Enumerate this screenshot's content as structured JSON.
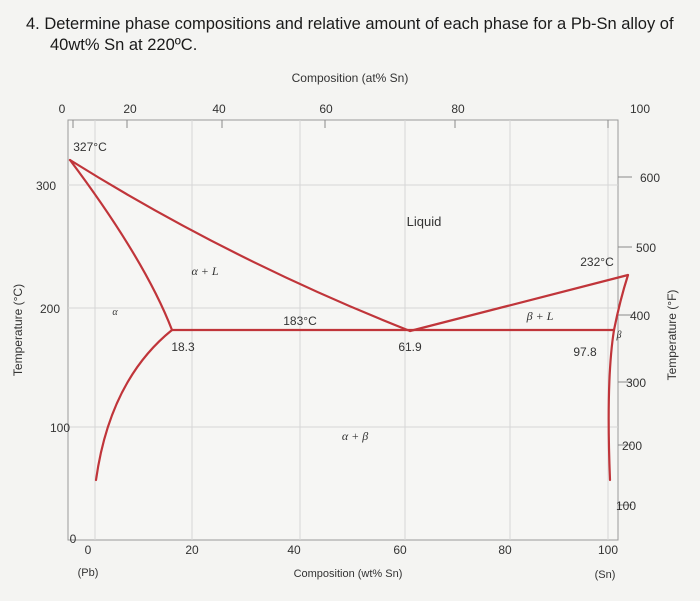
{
  "question": {
    "line1": "4. Determine phase compositions and relative amount of each phase for a Pb-Sn alloy of",
    "line2": "40wt% Sn at 220ºC."
  },
  "diagram": {
    "top_axis_title": "Composition (at% Sn)",
    "top_ticks": [
      "0",
      "20",
      "40",
      "60",
      "80",
      "100"
    ],
    "bottom_axis_title": "Composition (wt% Sn)",
    "bottom_ticks": [
      "0",
      "20",
      "40",
      "60",
      "80",
      "100"
    ],
    "bottom_end_labels": {
      "left": "(Pb)",
      "right": "(Sn)"
    },
    "left_axis_title": "Temperature (°C)",
    "left_ticks": [
      "300",
      "200",
      "100",
      "0"
    ],
    "right_axis_title": "Temperature (°F)",
    "right_ticks": [
      "600",
      "500",
      "400",
      "300",
      "200",
      "100"
    ],
    "points": {
      "pb_melt": "327°C",
      "sn_melt": "232°C",
      "eutectic_temp": "183°C",
      "alpha_max": "18.3",
      "eutectic_comp": "61.9",
      "beta_max": "97.8"
    },
    "regions": {
      "liquid": "Liquid",
      "alpha_l": "α + L",
      "beta_l": "β + L",
      "alpha_beta": "α + β",
      "alpha": "α",
      "beta": "β"
    },
    "line_color": "#c0353a"
  }
}
